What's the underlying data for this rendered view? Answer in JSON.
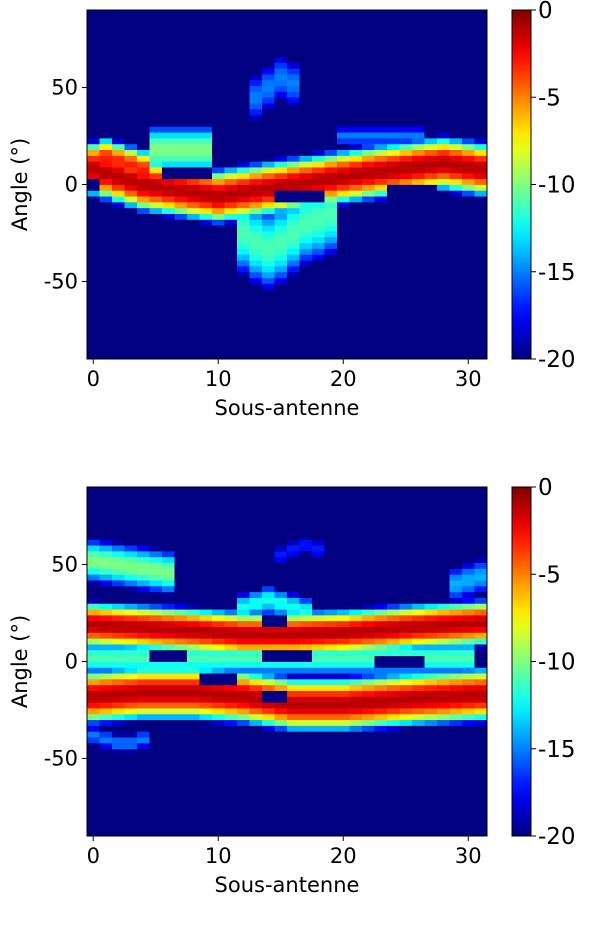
{
  "chart_data": [
    {
      "type": "heatmap",
      "title": "",
      "xlabel": "Sous-antenne",
      "ylabel": "Angle (°)",
      "xlim": [
        -0.5,
        31.5
      ],
      "ylim": [
        -90,
        90
      ],
      "xticks": [
        0,
        10,
        20,
        30
      ],
      "xtick_labels": [
        "0",
        "10",
        "20",
        "30"
      ],
      "yticks": [
        50,
        0,
        -50
      ],
      "ytick_labels": [
        "50",
        "0",
        "-50"
      ],
      "colormap": "jet",
      "colorbar": {
        "range": [
          -20,
          0
        ],
        "ticks": [
          0,
          -5,
          -10,
          -15,
          -20
        ],
        "tick_labels": [
          "0",
          "-5",
          "-10",
          "-15",
          "-20"
        ],
        "placement": "right"
      },
      "n_columns": 32,
      "angle_step_deg": 3,
      "features": [
        {
          "kind": "main_lobe",
          "note": "tilted beam",
          "x": [
            0,
            4,
            10,
            16,
            22,
            28,
            31
          ],
          "y": [
            8,
            0,
            -6,
            0,
            6,
            11,
            8
          ],
          "peak_db": -1,
          "width_deg": 13
        },
        {
          "kind": "lobe",
          "x": [
            0,
            1,
            2,
            3,
            4
          ],
          "y": [
            12,
            14,
            12,
            10,
            8
          ],
          "peak_db": -3,
          "width_deg": 10
        },
        {
          "kind": "lobe",
          "x": [
            12,
            13,
            14,
            15,
            16,
            17,
            18,
            19
          ],
          "y": [
            -25,
            -30,
            -33,
            -30,
            -25,
            -20,
            -18,
            -15
          ],
          "peak_db": -11,
          "width_deg": 28
        },
        {
          "kind": "lobe",
          "x": [
            5,
            6,
            7,
            8,
            9
          ],
          "y": [
            18,
            18,
            18,
            18,
            18
          ],
          "peak_db": -10,
          "width_deg": 16
        },
        {
          "kind": "lobe",
          "x": [
            13,
            14,
            15,
            16
          ],
          "y": [
            45,
            50,
            55,
            52
          ],
          "peak_db": -15,
          "width_deg": 20
        },
        {
          "kind": "lobe",
          "x": [
            20,
            22,
            24,
            26
          ],
          "y": [
            25,
            25,
            25,
            25
          ],
          "peak_db": -15,
          "width_deg": 8
        },
        {
          "kind": "null",
          "x": [
            0
          ],
          "y": [
            0
          ],
          "radius_deg": 3
        },
        {
          "kind": "null",
          "x": [
            6,
            7,
            8,
            9
          ],
          "y": [
            5,
            5,
            5,
            5
          ],
          "radius_deg": 3
        },
        {
          "kind": "null",
          "x": [
            15,
            16,
            17,
            18
          ],
          "y": [
            -7,
            -7,
            -7,
            -7
          ],
          "radius_deg": 3
        },
        {
          "kind": "null",
          "x": [
            24,
            25,
            26,
            27
          ],
          "y": [
            -3,
            -3,
            -3,
            -3
          ],
          "radius_deg": 3
        }
      ]
    },
    {
      "type": "heatmap",
      "title": "",
      "xlabel": "Sous-antenne",
      "ylabel": "Angle (°)",
      "xlim": [
        -0.5,
        31.5
      ],
      "ylim": [
        -90,
        90
      ],
      "xticks": [
        0,
        10,
        20,
        30
      ],
      "xtick_labels": [
        "0",
        "10",
        "20",
        "30"
      ],
      "yticks": [
        50,
        0,
        -50
      ],
      "ytick_labels": [
        "50",
        "0",
        "-50"
      ],
      "colormap": "jet",
      "colorbar": {
        "range": [
          -20,
          0
        ],
        "ticks": [
          0,
          -5,
          -10,
          -15,
          -20
        ],
        "tick_labels": [
          "0",
          "-5",
          "-10",
          "-15",
          "-20"
        ],
        "placement": "right"
      },
      "n_columns": 32,
      "angle_step_deg": 3,
      "features": [
        {
          "kind": "main_lobe",
          "note": "upper beam",
          "x": [
            0,
            8,
            12,
            16,
            20,
            26,
            31
          ],
          "y": [
            19,
            16,
            14,
            14,
            15,
            18,
            20
          ],
          "peak_db": -1,
          "width_deg": 11
        },
        {
          "kind": "main_lobe",
          "note": "lower beam",
          "x": [
            0,
            4,
            8,
            12,
            16,
            20,
            26,
            31
          ],
          "y": [
            -18,
            -16,
            -16,
            -18,
            -22,
            -22,
            -19,
            -17
          ],
          "peak_db": -1,
          "width_deg": 13
        },
        {
          "kind": "lobe",
          "x": [
            0,
            2,
            4,
            6
          ],
          "y": [
            52,
            50,
            48,
            46
          ],
          "peak_db": -10,
          "width_deg": 14
        },
        {
          "kind": "lobe",
          "x": [
            0,
            3,
            6,
            10,
            14,
            18,
            22,
            26,
            30
          ],
          "y": [
            2,
            2,
            2,
            2,
            2,
            2,
            2,
            2,
            2
          ],
          "peak_db": -11,
          "width_deg": 12
        },
        {
          "kind": "lobe",
          "x": [
            12,
            13,
            14,
            15,
            16,
            17
          ],
          "y": [
            28,
            30,
            32,
            30,
            28,
            26
          ],
          "peak_db": -12,
          "width_deg": 10
        },
        {
          "kind": "lobe",
          "x": [
            29,
            30,
            31
          ],
          "y": [
            40,
            42,
            44
          ],
          "peak_db": -14,
          "width_deg": 14
        },
        {
          "kind": "lobe",
          "x": [
            15,
            16,
            17,
            18
          ],
          "y": [
            55,
            58,
            60,
            58
          ],
          "peak_db": -17,
          "width_deg": 10
        },
        {
          "kind": "lobe",
          "x": [
            0,
            1,
            2,
            3,
            4
          ],
          "y": [
            -38,
            -40,
            -42,
            -42,
            -40
          ],
          "peak_db": -15,
          "width_deg": 8
        },
        {
          "kind": "null",
          "x": [
            14,
            15
          ],
          "y": [
            21,
            21
          ],
          "radius_deg": 3
        },
        {
          "kind": "null",
          "x": [
            14,
            15
          ],
          "y": [
            -19,
            -19
          ],
          "radius_deg": 3
        },
        {
          "kind": "null",
          "x": [
            5,
            6,
            7
          ],
          "y": [
            2,
            2,
            2
          ],
          "radius_deg": 3
        },
        {
          "kind": "null",
          "x": [
            14,
            15,
            16,
            17
          ],
          "y": [
            2,
            2,
            2,
            2
          ],
          "radius_deg": 3
        },
        {
          "kind": "null",
          "x": [
            23,
            24,
            25,
            26
          ],
          "y": [
            1,
            1,
            1,
            1
          ],
          "radius_deg": 3
        },
        {
          "kind": "null",
          "x": [
            9,
            10,
            11
          ],
          "y": [
            -8,
            -8,
            -8
          ],
          "radius_deg": 3
        }
      ]
    }
  ]
}
